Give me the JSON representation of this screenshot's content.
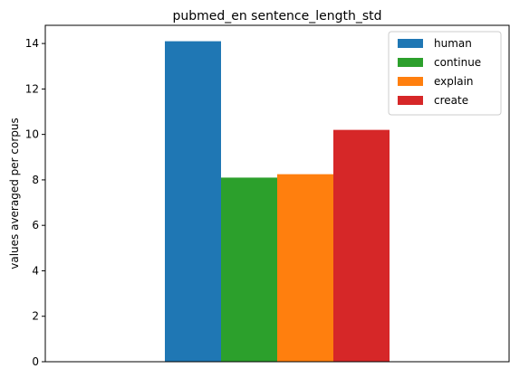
{
  "chart_data": {
    "type": "bar",
    "title": "pubmed_en sentence_length_std",
    "xlabel": "",
    "ylabel": "values averaged per corpus",
    "categories": [
      ""
    ],
    "series": [
      {
        "name": "human",
        "values": [
          14.1
        ],
        "color": "#1f77b4"
      },
      {
        "name": "continue",
        "values": [
          8.1
        ],
        "color": "#2ca02c"
      },
      {
        "name": "explain",
        "values": [
          8.25
        ],
        "color": "#ff7f0e"
      },
      {
        "name": "create",
        "values": [
          10.2
        ],
        "color": "#d62728"
      }
    ],
    "ylim": [
      0,
      14.8
    ],
    "yticks": [
      0,
      2,
      4,
      6,
      8,
      10,
      12,
      14
    ],
    "ytick_labels": [
      "0",
      "2",
      "4",
      "6",
      "8",
      "10",
      "12",
      "14"
    ],
    "grid": false,
    "legend_position": "top-right"
  }
}
